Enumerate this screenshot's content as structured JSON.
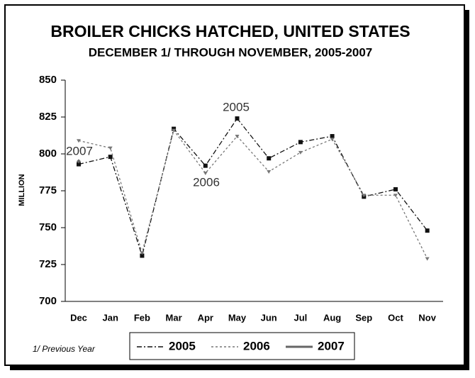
{
  "chart_data": {
    "type": "line",
    "title": "BROILER CHICKS HATCHED, UNITED STATES",
    "subtitle": "DECEMBER 1/ THROUGH NOVEMBER, 2005-2007",
    "y_label": "MILLION",
    "footnote": "1/ Previous Year",
    "annotations": [
      "2007",
      "2006",
      "2005"
    ],
    "categories": [
      "Dec",
      "Jan",
      "Feb",
      "Mar",
      "Apr",
      "May",
      "Jun",
      "Jul",
      "Aug",
      "Sep",
      "Oct",
      "Nov"
    ],
    "series": [
      {
        "name": "2005",
        "color": "#111111",
        "dash": "7,3,2,3",
        "marker": "square",
        "values": [
          793,
          798,
          731,
          817,
          792,
          824,
          797,
          808,
          812,
          771,
          776,
          748
        ]
      },
      {
        "name": "2006",
        "color": "#777777",
        "dash": "3,3",
        "marker": "triangle",
        "values": [
          809,
          804,
          733,
          816,
          787,
          812,
          788,
          801,
          810,
          772,
          772,
          729
        ]
      },
      {
        "name": "2007",
        "color": "#666666",
        "dash": "none",
        "marker": "diamond",
        "values": [
          795,
          null,
          null,
          null,
          null,
          null,
          null,
          null,
          null,
          null,
          null,
          null
        ]
      }
    ],
    "ylim": [
      700,
      850
    ],
    "yticks": [
      700,
      725,
      750,
      775,
      800,
      825,
      850
    ]
  }
}
